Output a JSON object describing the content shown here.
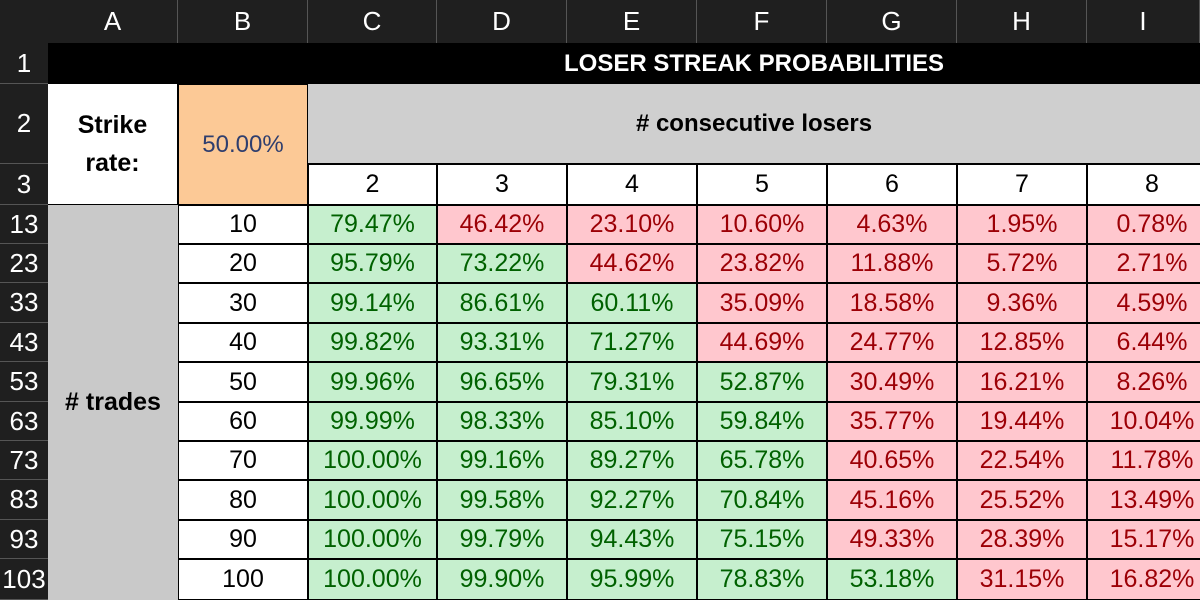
{
  "columns": [
    "A",
    "B",
    "C",
    "D",
    "E",
    "F",
    "G",
    "H",
    "I"
  ],
  "rows": [
    "1",
    "2",
    "3",
    "13",
    "23",
    "33",
    "43",
    "53",
    "63",
    "73",
    "83",
    "93",
    "103"
  ],
  "title": "LOSER STREAK PROBABILITIES",
  "strike_label": "Strike rate:",
  "strike_value": "50.00%",
  "consecutive_label": "# consecutive losers",
  "losers": [
    "2",
    "3",
    "4",
    "5",
    "6",
    "7",
    "8"
  ],
  "trades_label": "# trades",
  "trades": [
    "10",
    "20",
    "30",
    "40",
    "50",
    "60",
    "70",
    "80",
    "90",
    "100"
  ],
  "values": [
    [
      "79.47%",
      "46.42%",
      "23.10%",
      "10.60%",
      "4.63%",
      "1.95%",
      "0.78%"
    ],
    [
      "95.79%",
      "73.22%",
      "44.62%",
      "23.82%",
      "11.88%",
      "5.72%",
      "2.71%"
    ],
    [
      "99.14%",
      "86.61%",
      "60.11%",
      "35.09%",
      "18.58%",
      "9.36%",
      "4.59%"
    ],
    [
      "99.82%",
      "93.31%",
      "71.27%",
      "44.69%",
      "24.77%",
      "12.85%",
      "6.44%"
    ],
    [
      "99.96%",
      "96.65%",
      "79.31%",
      "52.87%",
      "30.49%",
      "16.21%",
      "8.26%"
    ],
    [
      "99.99%",
      "98.33%",
      "85.10%",
      "59.84%",
      "35.77%",
      "19.44%",
      "10.04%"
    ],
    [
      "100.00%",
      "99.16%",
      "89.27%",
      "65.78%",
      "40.65%",
      "22.54%",
      "11.78%"
    ],
    [
      "100.00%",
      "99.58%",
      "92.27%",
      "70.84%",
      "45.16%",
      "25.52%",
      "13.49%"
    ],
    [
      "100.00%",
      "99.79%",
      "94.43%",
      "75.15%",
      "49.33%",
      "28.39%",
      "15.17%"
    ],
    [
      "100.00%",
      "99.90%",
      "95.99%",
      "78.83%",
      "53.18%",
      "31.15%",
      "16.82%"
    ]
  ],
  "colors": {
    "green_fill": "#c6efce",
    "green_text": "#006100",
    "red_fill": "#ffc7ce",
    "red_text": "#9c0006",
    "strike_fill": "#fcc996"
  }
}
